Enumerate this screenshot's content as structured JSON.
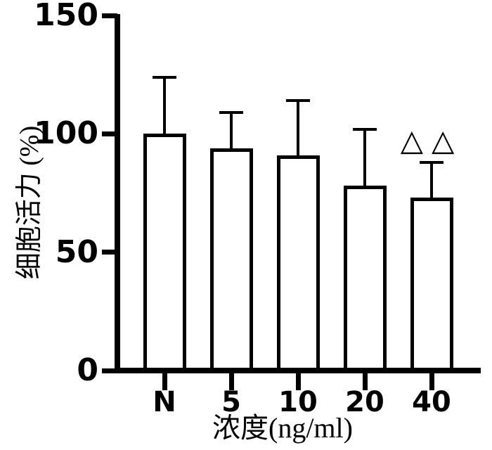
{
  "chart_data": {
    "type": "bar",
    "title": "",
    "categories": [
      "N",
      "5",
      "10",
      "20",
      "40"
    ],
    "series": [
      {
        "name": "细胞活力",
        "values": [
          100,
          94,
          91,
          78,
          73
        ],
        "errors": [
          24,
          15,
          23,
          24,
          15
        ],
        "error_type": "sd-upper-only"
      }
    ],
    "xlabel": "浓度(ng/ml)",
    "ylabel": "细胞活力 (%)",
    "ylim": [
      0,
      150
    ],
    "yticks": [
      0,
      50,
      100,
      150
    ],
    "grid": false,
    "legend_position": "none",
    "bar_fill": "#ffffff",
    "bar_stroke": "#000000",
    "axis_color": "#000000",
    "annotations": [
      {
        "text": "△△",
        "category": "40",
        "category_index": 4,
        "position": "above-error-bar"
      }
    ]
  }
}
